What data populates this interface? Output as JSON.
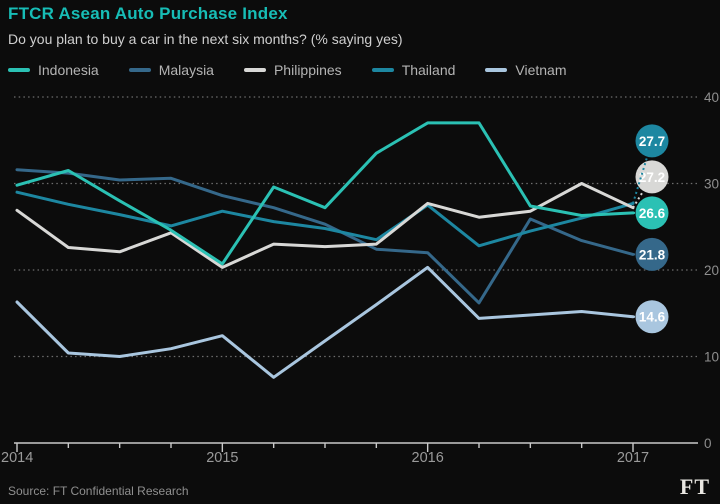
{
  "header": {
    "title": "FTCR Asean Auto Purchase Index",
    "subtitle": "Do you plan to buy a car in the next six months? (% saying yes)"
  },
  "legend": [
    {
      "label": "Indonesia",
      "color": "#2bc1b4"
    },
    {
      "label": "Malaysia",
      "color": "#35688a"
    },
    {
      "label": "Philippines",
      "color": "#d8d8d6"
    },
    {
      "label": "Thailand",
      "color": "#1d87a1"
    },
    {
      "label": "Vietnam",
      "color": "#a9c6df"
    }
  ],
  "chart_data": {
    "type": "line",
    "title": "FTCR Asean Auto Purchase Index",
    "subtitle": "Do you plan to buy a car in the next six months? (% saying yes)",
    "categories": [
      "2014 Q1",
      "2014 Q2",
      "2014 Q3",
      "2014 Q4",
      "2015 Q1",
      "2015 Q2",
      "2015 Q3",
      "2015 Q4",
      "2016 Q1",
      "2016 Q2",
      "2016 Q3",
      "2016 Q4",
      "2017 Q1"
    ],
    "x_year_labels": [
      "2014",
      "2015",
      "2016",
      "2017"
    ],
    "y_ticks": [
      0,
      10,
      20,
      30,
      40
    ],
    "ylim": [
      0,
      40
    ],
    "grid": "dotted-horizontal",
    "legend_position": "top",
    "series": [
      {
        "name": "Malaysia",
        "color": "#35688a",
        "end_label": "21.8",
        "values": [
          31.6,
          31.2,
          30.4,
          30.6,
          28.6,
          27.2,
          25.3,
          22.4,
          22.0,
          16.2,
          25.9,
          23.4,
          21.8
        ]
      },
      {
        "name": "Vietnam",
        "color": "#a9c6df",
        "end_label": "14.6",
        "values": [
          16.3,
          10.4,
          10.0,
          10.9,
          12.4,
          7.6,
          11.8,
          16.0,
          20.3,
          14.4,
          14.8,
          15.2,
          14.6
        ]
      },
      {
        "name": "Thailand",
        "color": "#1d87a1",
        "end_label": "27.7",
        "values": [
          29.0,
          27.6,
          26.4,
          25.1,
          26.8,
          25.6,
          24.8,
          23.5,
          27.5,
          22.8,
          24.5,
          26.0,
          27.7
        ]
      },
      {
        "name": "Philippines",
        "color": "#d8d8d6",
        "end_label": "27.2",
        "values": [
          26.9,
          22.6,
          22.1,
          24.3,
          20.3,
          23.0,
          22.7,
          23.0,
          27.7,
          26.1,
          26.8,
          30.0,
          27.2
        ]
      },
      {
        "name": "Indonesia",
        "color": "#2bc1b4",
        "end_label": "26.6",
        "values": [
          29.8,
          31.5,
          28.0,
          24.6,
          20.7,
          29.6,
          27.2,
          33.5,
          37.0,
          37.0,
          27.4,
          26.3,
          26.6
        ]
      }
    ]
  },
  "footer": {
    "source": "Source: FT Confidential Research",
    "logo": "FT"
  }
}
